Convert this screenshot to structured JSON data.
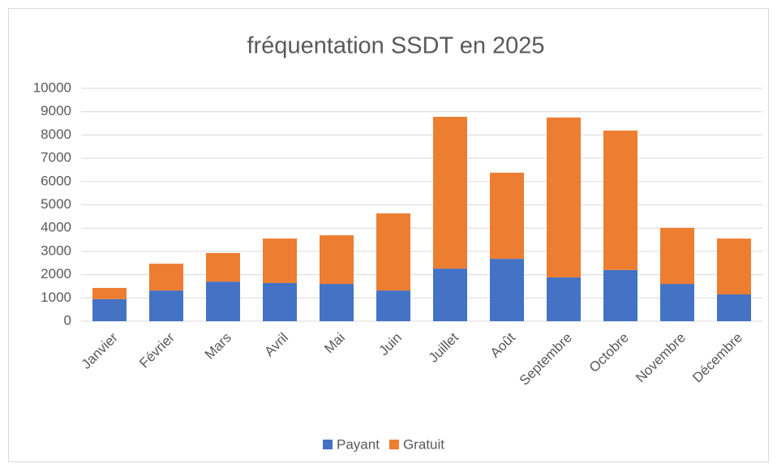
{
  "chart_data": {
    "type": "stacked_bar",
    "title": "fréquentation SSDT en 2025",
    "categories": [
      "Janvier",
      "Février",
      "Mars",
      "Avril",
      "Mai",
      "Juin",
      "Juillet",
      "Août",
      "Septembre",
      "Octobre",
      "Novembre",
      "Décembre"
    ],
    "series": [
      {
        "name": "Payant",
        "color": "#4472c4",
        "values": [
          950,
          1320,
          1700,
          1640,
          1600,
          1320,
          2260,
          2680,
          1880,
          2200,
          1600,
          1150
        ]
      },
      {
        "name": "Gratuit",
        "color": "#ed7d31",
        "values": [
          480,
          1150,
          1230,
          1910,
          2090,
          3310,
          6520,
          3700,
          6870,
          5990,
          2410,
          2400
        ]
      }
    ],
    "ylim": [
      0,
      10000
    ],
    "yticks": [
      0,
      1000,
      2000,
      3000,
      4000,
      5000,
      6000,
      7000,
      8000,
      9000,
      10000
    ],
    "grid": true,
    "legend": "bottom"
  }
}
